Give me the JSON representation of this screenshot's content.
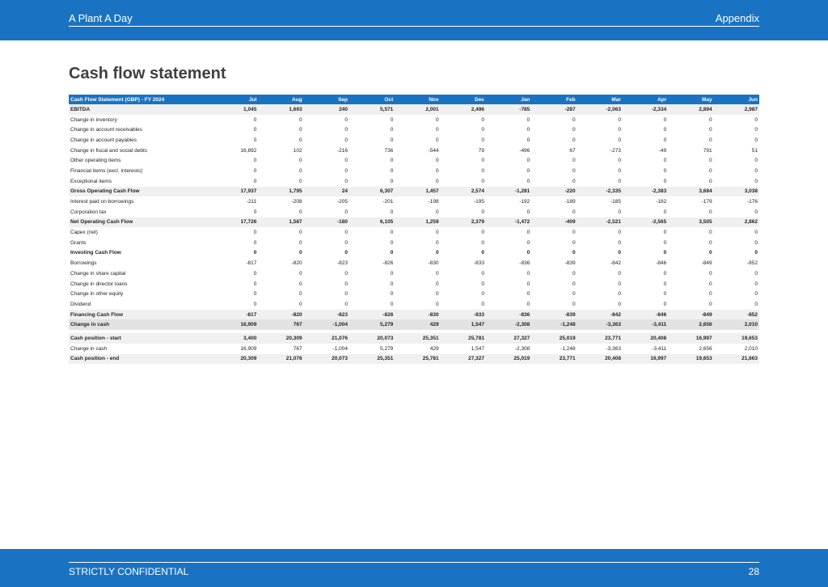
{
  "header": {
    "company": "A Plant A Day",
    "section": "Appendix"
  },
  "page_title": "Cash flow statement",
  "table": {
    "columns": [
      "Cash Flow Statement (GBP) - FY 2024",
      "Jul",
      "Aug",
      "Sep",
      "Oct",
      "Nov",
      "Dec",
      "Jan",
      "Feb",
      "Mar",
      "Apr",
      "May",
      "Jun"
    ],
    "rows": [
      {
        "label": "EBITDA",
        "values": [
          "1,045",
          "1,693",
          "240",
          "5,571",
          "2,001",
          "2,496",
          "-785",
          "-287",
          "-2,063",
          "-2,334",
          "2,894",
          "2,987"
        ],
        "style": "bold shade"
      },
      {
        "label": "Change in inventory",
        "values": [
          "0",
          "0",
          "0",
          "0",
          "0",
          "0",
          "0",
          "0",
          "0",
          "0",
          "0",
          "0"
        ],
        "style": ""
      },
      {
        "label": "Change in account receivables",
        "values": [
          "0",
          "0",
          "0",
          "0",
          "0",
          "0",
          "0",
          "0",
          "0",
          "0",
          "0",
          "0"
        ],
        "style": ""
      },
      {
        "label": "Change in account payables",
        "values": [
          "0",
          "0",
          "0",
          "0",
          "0",
          "0",
          "0",
          "0",
          "0",
          "0",
          "0",
          "0"
        ],
        "style": ""
      },
      {
        "label": "Change in fiscal and social debts",
        "values": [
          "16,892",
          "102",
          "-216",
          "736",
          "-544",
          "79",
          "-496",
          "67",
          "-273",
          "-49",
          "791",
          "51"
        ],
        "style": ""
      },
      {
        "label": "Other operating items",
        "values": [
          "0",
          "0",
          "0",
          "0",
          "0",
          "0",
          "0",
          "0",
          "0",
          "0",
          "0",
          "0"
        ],
        "style": ""
      },
      {
        "label": "Financial items (excl. interests)",
        "values": [
          "0",
          "0",
          "0",
          "0",
          "0",
          "0",
          "0",
          "0",
          "0",
          "0",
          "0",
          "0"
        ],
        "style": ""
      },
      {
        "label": "Exceptional items",
        "values": [
          "0",
          "0",
          "0",
          "0",
          "0",
          "0",
          "0",
          "0",
          "0",
          "0",
          "0",
          "0"
        ],
        "style": ""
      },
      {
        "label": "Gross Operating Cash Flow",
        "values": [
          "17,937",
          "1,795",
          "24",
          "6,307",
          "1,457",
          "2,574",
          "-1,281",
          "-220",
          "-2,335",
          "-2,383",
          "3,684",
          "3,038"
        ],
        "style": "bold shade"
      },
      {
        "label": "Interest paid on borrowings",
        "values": [
          "-211",
          "-208",
          "-205",
          "-201",
          "-198",
          "-195",
          "-192",
          "-189",
          "-185",
          "-182",
          "-179",
          "-176"
        ],
        "style": ""
      },
      {
        "label": "Corporation tax",
        "values": [
          "0",
          "0",
          "0",
          "0",
          "0",
          "0",
          "0",
          "0",
          "0",
          "0",
          "0",
          "0"
        ],
        "style": ""
      },
      {
        "label": "Net Operating Cash Flow",
        "values": [
          "17,726",
          "1,587",
          "-180",
          "6,105",
          "1,259",
          "2,379",
          "-1,472",
          "-409",
          "-2,521",
          "-2,565",
          "3,505",
          "2,862"
        ],
        "style": "bold shade"
      },
      {
        "label": "Capex (net)",
        "values": [
          "0",
          "0",
          "0",
          "0",
          "0",
          "0",
          "0",
          "0",
          "0",
          "0",
          "0",
          "0"
        ],
        "style": ""
      },
      {
        "label": "Grants",
        "values": [
          "0",
          "0",
          "0",
          "0",
          "0",
          "0",
          "0",
          "0",
          "0",
          "0",
          "0",
          "0"
        ],
        "style": ""
      },
      {
        "label": "Investing Cash Flow",
        "values": [
          "0",
          "0",
          "0",
          "0",
          "0",
          "0",
          "0",
          "0",
          "0",
          "0",
          "0",
          "0"
        ],
        "style": "bold"
      },
      {
        "label": "Borrowings",
        "values": [
          "-817",
          "-820",
          "-823",
          "-826",
          "-830",
          "-833",
          "-836",
          "-839",
          "-842",
          "-846",
          "-849",
          "-852"
        ],
        "style": ""
      },
      {
        "label": "Change in share capital",
        "values": [
          "0",
          "0",
          "0",
          "0",
          "0",
          "0",
          "0",
          "0",
          "0",
          "0",
          "0",
          "0"
        ],
        "style": ""
      },
      {
        "label": "Change in director loans",
        "values": [
          "0",
          "0",
          "0",
          "0",
          "0",
          "0",
          "0",
          "0",
          "0",
          "0",
          "0",
          "0"
        ],
        "style": ""
      },
      {
        "label": "Change in other equity",
        "values": [
          "0",
          "0",
          "0",
          "0",
          "0",
          "0",
          "0",
          "0",
          "0",
          "0",
          "0",
          "0"
        ],
        "style": ""
      },
      {
        "label": "Dividend",
        "values": [
          "0",
          "0",
          "0",
          "0",
          "0",
          "0",
          "0",
          "0",
          "0",
          "0",
          "0",
          "0"
        ],
        "style": ""
      },
      {
        "label": "Financing Cash Flow",
        "values": [
          "-817",
          "-820",
          "-823",
          "-826",
          "-830",
          "-833",
          "-836",
          "-839",
          "-842",
          "-846",
          "-849",
          "-852"
        ],
        "style": "bold shade"
      },
      {
        "label": "Change in cash",
        "values": [
          "16,909",
          "767",
          "-1,004",
          "5,279",
          "429",
          "1,547",
          "-2,308",
          "-1,248",
          "-3,363",
          "-3,411",
          "2,656",
          "2,010"
        ],
        "style": "bold dark"
      },
      {
        "label": "",
        "values": [],
        "style": "gap"
      },
      {
        "label": "Cash position - start",
        "values": [
          "3,400",
          "20,309",
          "21,076",
          "20,073",
          "25,351",
          "25,781",
          "27,327",
          "25,019",
          "23,771",
          "20,408",
          "16,997",
          "19,653"
        ],
        "style": "bold shade"
      },
      {
        "label": "Change in cash",
        "values": [
          "16,909",
          "767",
          "-1,004",
          "5,279",
          "429",
          "1,547",
          "-2,308",
          "-1,248",
          "-3,363",
          "-3,411",
          "2,656",
          "2,010"
        ],
        "style": ""
      },
      {
        "label": "Cash position - end",
        "values": [
          "20,309",
          "21,076",
          "20,073",
          "25,351",
          "25,781",
          "27,327",
          "25,019",
          "23,771",
          "20,408",
          "16,997",
          "19,653",
          "21,663"
        ],
        "style": "bold shade"
      }
    ]
  },
  "footer": {
    "confidentiality": "STRICTLY CONFIDENTIAL",
    "page_number": "28"
  }
}
